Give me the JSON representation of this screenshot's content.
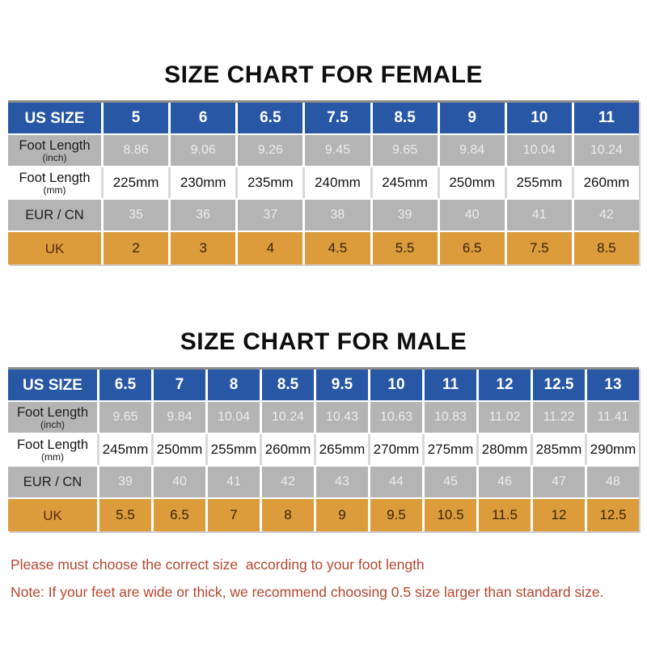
{
  "colors": {
    "blue": "#2857a6",
    "gray": "#b4b4b5",
    "orange": "#dc9c3c",
    "note-red": "#b5452e",
    "table-top-border": "#8c8c8c",
    "table-shadow": "#cfcfcf"
  },
  "female": {
    "title": "SIZE CHART FOR FEMALE",
    "rows": [
      {
        "label": "US SIZE",
        "sub": "",
        "style": "header",
        "values": [
          "5",
          "6",
          "6.5",
          "7.5",
          "8.5",
          "9",
          "10",
          "11"
        ]
      },
      {
        "label": "Foot Length",
        "sub": "(inch)",
        "style": "gray",
        "values": [
          "8.86",
          "9.06",
          "9.26",
          "9.45",
          "9.65",
          "9.84",
          "10.04",
          "10.24"
        ]
      },
      {
        "label": "Foot Length",
        "sub": "(mm)",
        "style": "white",
        "values": [
          "225mm",
          "230mm",
          "235mm",
          "240mm",
          "245mm",
          "250mm",
          "255mm",
          "260mm"
        ]
      },
      {
        "label": "EUR / CN",
        "sub": "",
        "style": "gray",
        "values": [
          "35",
          "36",
          "37",
          "38",
          "39",
          "40",
          "41",
          "42"
        ]
      },
      {
        "label": "UK",
        "sub": "",
        "style": "orange",
        "values": [
          "2",
          "3",
          "4",
          "4.5",
          "5.5",
          "6.5",
          "7.5",
          "8.5"
        ]
      }
    ]
  },
  "male": {
    "title": "SIZE CHART FOR MALE",
    "rows": [
      {
        "label": "US SIZE",
        "sub": "",
        "style": "header",
        "values": [
          "6.5",
          "7",
          "8",
          "8.5",
          "9.5",
          "10",
          "11",
          "12",
          "12.5",
          "13"
        ]
      },
      {
        "label": "Foot Length",
        "sub": "(inch)",
        "style": "gray",
        "values": [
          "9.65",
          "9.84",
          "10.04",
          "10.24",
          "10.43",
          "10.63",
          "10.83",
          "11.02",
          "11.22",
          "11.41"
        ]
      },
      {
        "label": "Foot Length",
        "sub": "(mm)",
        "style": "white",
        "values": [
          "245mm",
          "250mm",
          "255mm",
          "260mm",
          "265mm",
          "270mm",
          "275mm",
          "280mm",
          "285mm",
          "290mm"
        ]
      },
      {
        "label": "EUR / CN",
        "sub": "",
        "style": "gray",
        "values": [
          "39",
          "40",
          "41",
          "42",
          "43",
          "44",
          "45",
          "46",
          "47",
          "48"
        ]
      },
      {
        "label": "UK",
        "sub": "",
        "style": "orange",
        "values": [
          "5.5",
          "6.5",
          "7",
          "8",
          "9",
          "9.5",
          "10.5",
          "11.5",
          "12",
          "12.5"
        ]
      }
    ]
  },
  "notes": {
    "line1": "Please must choose the correct size  according to your foot length",
    "line2": "Note: If your feet are wide or thick, we recommend choosing 0.5 size larger than standard size."
  }
}
